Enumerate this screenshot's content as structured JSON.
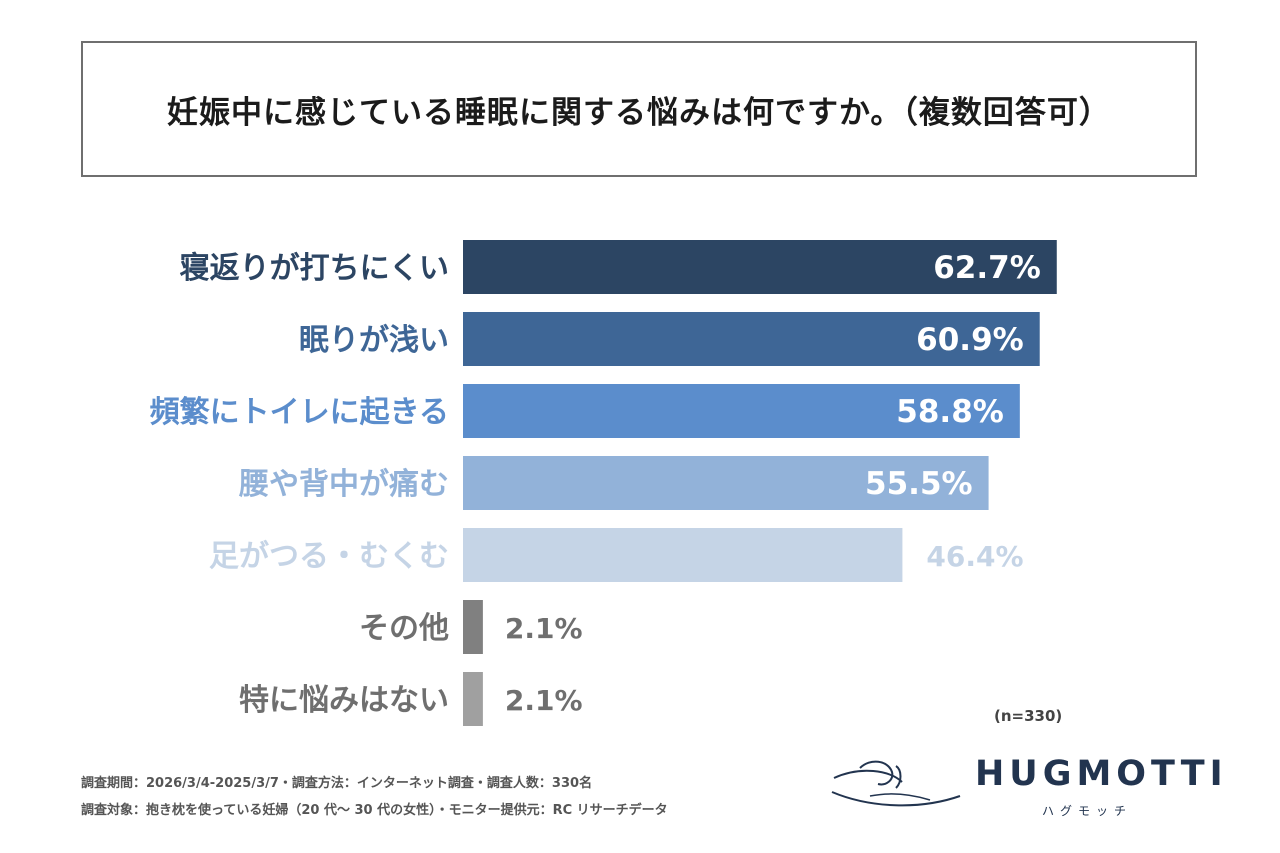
{
  "chart_data": {
    "type": "bar",
    "orientation": "horizontal",
    "title": "妊娠中に感じている睡眠に関する悩みは何ですか。（複数回答可）",
    "categories": [
      "寝返りが打ちにくい",
      "眠りが浅い",
      "頻繁にトイレに起きる",
      "腰や背中が痛む",
      "足がつる・むくむ",
      "その他",
      "特に悩みはない"
    ],
    "values": [
      62.7,
      60.9,
      58.8,
      55.5,
      46.4,
      2.1,
      2.1
    ],
    "value_labels": [
      "62.7%",
      "60.9%",
      "58.8%",
      "55.5%",
      "46.4%",
      "2.1%",
      "2.1%"
    ],
    "bar_colors": [
      "#2c4563",
      "#3e6696",
      "#5b8dcc",
      "#92b2d9",
      "#c5d4e6",
      "#808080",
      "#a0a0a0"
    ],
    "label_colors": [
      "#2c4563",
      "#3e6696",
      "#5b8dcc",
      "#92b2d9",
      "#c5d4e6",
      "#6f6f6f",
      "#6f6f6f"
    ],
    "xlim": [
      0,
      100
    ],
    "note": "(n=330)"
  },
  "footer": {
    "line1": "調査期間：2026/3/4-2025/3/7・調査方法：インターネット調査・調査人数：330名",
    "line2": "調査対象：抱き枕を使っている妊婦（20 代〜 30 代の女性）・モニター提供元：RC リサーチデータ"
  },
  "brand": {
    "name": "HUGMOTTI",
    "kana": "ハグモッチ",
    "logo_icon": "sleeping-person-icon",
    "color": "#22344f"
  }
}
